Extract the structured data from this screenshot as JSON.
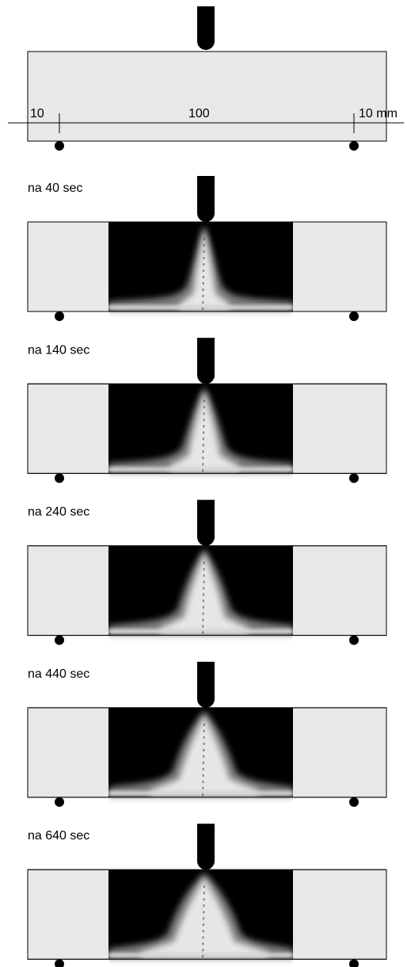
{
  "dimensions": {
    "left": "10",
    "middle": "100",
    "right": "10 mm"
  },
  "panels": [
    {
      "label": "na 40 sec"
    },
    {
      "label": "na 140 sec"
    },
    {
      "label": "na 240 sec"
    },
    {
      "label": "na 440 sec"
    },
    {
      "label": "na 640 sec"
    }
  ]
}
